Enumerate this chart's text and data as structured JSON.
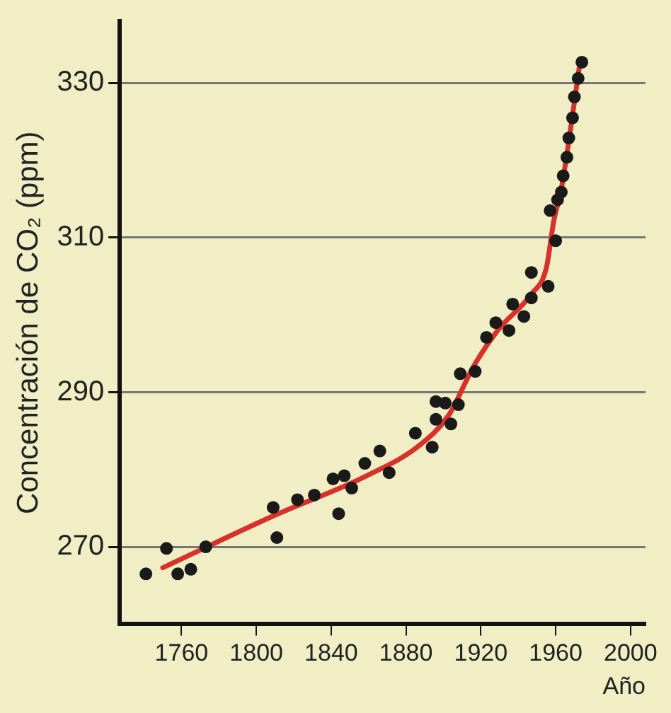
{
  "chart_data": {
    "type": "scatter",
    "xlabel": "Año",
    "ylabel": "Concentración de CO₂ (ppm)",
    "xlim": [
      1727,
      2008
    ],
    "ylim": [
      260,
      338
    ],
    "xticks": [
      1760,
      1800,
      1840,
      1880,
      1920,
      1960,
      2000
    ],
    "yticks": [
      270,
      290,
      310,
      330
    ],
    "grid": "y",
    "legend": false,
    "marker": "circle",
    "series": [
      {
        "color": "#1a1a1a",
        "x": [
          1741,
          1752,
          1758,
          1765,
          1773,
          1809,
          1811,
          1822,
          1831,
          1841,
          1844,
          1847,
          1851,
          1858,
          1866,
          1871,
          1885,
          1894,
          1896,
          1896,
          1901,
          1904,
          1908,
          1909,
          1917,
          1923,
          1928,
          1935,
          1937,
          1943,
          1947,
          1947,
          1956,
          1957,
          1960,
          1961,
          1963,
          1964,
          1966,
          1967,
          1969,
          1970,
          1972,
          1974
        ],
        "values": [
          266.5,
          269.8,
          266.5,
          267.1,
          270,
          275.1,
          271.2,
          276.1,
          276.7,
          278.8,
          274.3,
          279.2,
          277.6,
          280.8,
          282.4,
          279.6,
          284.7,
          282.9,
          288.8,
          286.5,
          288.6,
          285.9,
          288.4,
          292.4,
          292.7,
          297.1,
          299,
          298,
          301.4,
          299.8,
          305.5,
          302.2,
          303.7,
          313.5,
          309.6,
          314.9,
          315.9,
          318,
          320.4,
          322.9,
          325.5,
          328.2,
          330.6,
          332.7
        ]
      },
      {
        "type": "line",
        "color": "#d8312b",
        "marker": "none",
        "line_style": "solid",
        "x": [
          1750,
          1810,
          1859,
          1887,
          1903,
          1916,
          1929,
          1947,
          1955,
          1959,
          1963,
          1973
        ],
        "values": [
          267.3,
          274.1,
          279.2,
          283.1,
          287.1,
          293.3,
          298,
          302.7,
          306.1,
          312.2,
          316.3,
          332.7
        ]
      }
    ]
  }
}
